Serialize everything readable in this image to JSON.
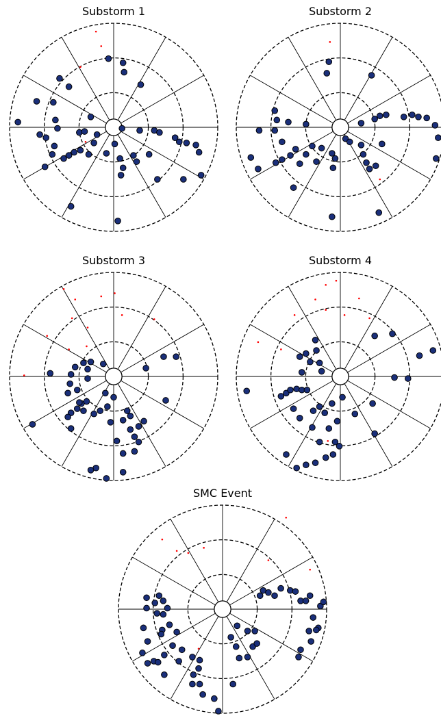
{
  "chart_data": [
    {
      "type": "polar-scatter",
      "title": "Substorm 1",
      "xlim": [
        -1,
        1
      ],
      "ylim": [
        -1,
        1
      ],
      "rticks": [
        0.08,
        0.333,
        0.667,
        1
      ],
      "thetaticks": [
        0,
        30,
        60,
        90,
        120,
        150,
        180,
        210,
        240,
        270,
        300,
        330
      ],
      "series": [
        {
          "color": "#1a2f7a",
          "x": [
            -0.05,
            0.09,
            0.1,
            0.26,
            -0.92,
            -0.74,
            -0.58,
            -0.52,
            -0.43,
            -0.56,
            -0.71,
            -0.65,
            -0.54,
            -0.57,
            -0.59,
            -0.66,
            -0.48,
            -0.43,
            -0.38,
            -0.33,
            -0.32,
            -0.28,
            -0.24,
            -0.16,
            -0.22,
            -0.19,
            -0.07,
            0.08,
            0.25,
            0.39,
            0.44,
            0.59,
            0.63,
            0.7,
            0.79,
            0.82,
            0.84,
            0.67,
            0.01,
            0.06,
            0.09,
            0.07,
            0.19,
            0.22,
            0.34,
            0.42,
            -0.41,
            0.04
          ],
          "y": [
            0.66,
            0.62,
            0.53,
            0.41,
            0.05,
            0.25,
            0.24,
            0.47,
            0.39,
            0.07,
            -0.07,
            -0.1,
            -0.01,
            -0.18,
            -0.26,
            -0.38,
            -0.3,
            -0.27,
            -0.24,
            -0.05,
            -0.22,
            -0.04,
            -0.26,
            -0.07,
            0.1,
            -0.15,
            -0.25,
            -0.01,
            -0.03,
            -0.03,
            -0.05,
            -0.1,
            -0.14,
            -0.15,
            -0.17,
            -0.24,
            -0.46,
            -0.5,
            -0.16,
            -0.3,
            -0.39,
            -0.46,
            -0.27,
            -0.33,
            -0.26,
            -0.5,
            -0.76,
            -0.9
          ]
        },
        {
          "color": "#ff0000",
          "x": [
            -0.17,
            -0.12,
            -0.32,
            -0.27
          ],
          "y": [
            0.92,
            0.78,
            0.58,
            -0.14
          ]
        }
      ]
    },
    {
      "type": "polar-scatter",
      "title": "Substorm 2",
      "xlim": [
        -1,
        1
      ],
      "ylim": [
        -1,
        1
      ],
      "rticks": [
        0.08,
        0.333,
        0.667,
        1
      ],
      "thetaticks": [
        0,
        30,
        60,
        90,
        120,
        150,
        180,
        210,
        240,
        270,
        300,
        330
      ],
      "series": [
        {
          "color": "#1a2f7a",
          "x": [
            0.3,
            -0.13,
            -0.11,
            -0.63,
            -0.61,
            -0.63,
            -0.78,
            -0.5,
            -0.33,
            -0.56,
            -0.62,
            -0.56,
            -0.48,
            -0.86,
            -0.79,
            -0.45,
            -0.43,
            -0.39,
            -0.33,
            -0.27,
            -0.23,
            -0.18,
            -0.08,
            -0.07,
            -0.05,
            0.05,
            0.09,
            0.2,
            0.33,
            0.38,
            0.44,
            0.61,
            0.69,
            0.75,
            0.83,
            0.91,
            0.94,
            0.92,
            0.22,
            0.25,
            0.28,
            0.34,
            0.2,
            0.4,
            -0.08,
            0.37
          ],
          "y": [
            0.5,
            0.52,
            0.63,
            0.16,
            0.07,
            -0.03,
            -0.03,
            0.05,
            0.03,
            -0.14,
            -0.34,
            -0.31,
            -0.27,
            -0.29,
            -0.4,
            -0.58,
            -0.21,
            -0.35,
            -0.26,
            -0.18,
            -0.33,
            -0.2,
            -0.25,
            -0.39,
            -0.3,
            -0.11,
            -0.14,
            0.04,
            0.08,
            0.11,
            0.12,
            0.1,
            0.12,
            0.1,
            0.09,
            0.02,
            -0.1,
            -0.3,
            -0.26,
            -0.34,
            -0.4,
            -0.37,
            -0.17,
            -0.16,
            -0.86,
            -0.82
          ]
        },
        {
          "color": "#ff0000",
          "x": [
            -0.1,
            0.38
          ],
          "y": [
            0.82,
            -0.5
          ]
        }
      ]
    },
    {
      "type": "polar-scatter",
      "title": "Substorm 3",
      "xlim": [
        -1,
        1
      ],
      "ylim": [
        -1,
        1
      ],
      "rticks": [
        0.08,
        0.333,
        0.667,
        1
      ],
      "thetaticks": [
        0,
        30,
        60,
        90,
        120,
        150,
        180,
        210,
        240,
        270,
        300,
        330
      ],
      "series": [
        {
          "color": "#1a2f7a",
          "x": [
            -0.1,
            -0.22,
            -0.25,
            -0.29,
            -0.37,
            -0.41,
            -0.42,
            -0.25,
            -0.61,
            -0.44,
            -0.35,
            -0.31,
            -0.35,
            -0.41,
            -0.44,
            -0.41,
            -0.33,
            -0.26,
            -0.29,
            -0.19,
            -0.13,
            -0.06,
            -0.08,
            0.0,
            -0.03,
            0.13,
            0.16,
            0.09,
            0.24,
            0.29,
            0.16,
            0.2,
            0.24,
            0.2,
            0.09,
            0.03,
            0.09,
            -0.17,
            -0.22,
            -0.07,
            0.5,
            0.6,
            0.48,
            -0.78,
            0.31
          ],
          "y": [
            0.12,
            0.14,
            0.07,
            0.13,
            0.09,
            0.02,
            -0.07,
            -0.02,
            0.03,
            -0.16,
            -0.13,
            -0.26,
            -0.31,
            -0.35,
            -0.39,
            -0.5,
            -0.25,
            -0.24,
            -0.33,
            -0.36,
            -0.33,
            -0.29,
            -0.16,
            -0.2,
            -0.44,
            -0.33,
            -0.38,
            -0.42,
            -0.48,
            -0.43,
            -0.51,
            -0.58,
            -0.63,
            -0.72,
            -0.74,
            -0.62,
            -0.92,
            -0.88,
            -0.9,
            -0.98,
            -0.23,
            0.19,
            0.19,
            -0.46,
            0.08
          ]
        },
        {
          "color": "#ff0000",
          "x": [
            -0.48,
            -0.37,
            -0.12,
            -0.4,
            -0.25,
            0.08,
            -0.64,
            -0.86,
            -0.26,
            -0.43,
            0.39,
            0.01
          ],
          "y": [
            0.84,
            0.74,
            0.77,
            0.56,
            0.47,
            0.59,
            0.39,
            0.01,
            0.29,
            0.26,
            0.55,
            0.8
          ]
        }
      ]
    },
    {
      "type": "polar-scatter",
      "title": "Substorm 4",
      "xlim": [
        -1,
        1
      ],
      "ylim": [
        -1,
        1
      ],
      "rticks": [
        0.08,
        0.333,
        0.667,
        1
      ],
      "thetaticks": [
        0,
        30,
        60,
        90,
        120,
        150,
        180,
        210,
        240,
        270,
        300,
        330
      ],
      "series": [
        {
          "color": "#1a2f7a",
          "x": [
            -0.24,
            -0.23,
            -0.33,
            -0.29,
            -0.39,
            -0.37,
            -0.2,
            -0.18,
            0.33,
            0.5,
            0.76,
            0.89,
            0.52,
            0.65,
            -0.9,
            -0.57,
            -0.52,
            -0.48,
            -0.42,
            -0.37,
            -0.32,
            -0.45,
            -0.39,
            -0.26,
            -0.2,
            -0.15,
            -0.08,
            -0.03,
            -0.27,
            -0.11,
            -0.2,
            -0.05,
            -0.01,
            -0.07,
            -0.14,
            -0.24,
            -0.33,
            -0.42,
            -0.52,
            0.14,
            0.31,
            0.33,
            0.02
          ],
          "y": [
            0.35,
            0.25,
            0.22,
            0.14,
            0.19,
            0.04,
            0.13,
            0.05,
            0.39,
            0.41,
            0.2,
            0.25,
            -0.01,
            -0.02,
            -0.14,
            -0.19,
            -0.16,
            -0.13,
            -0.12,
            -0.13,
            -0.13,
            -0.31,
            -0.4,
            -0.33,
            -0.29,
            -0.35,
            -0.26,
            -0.43,
            -0.49,
            -0.5,
            -0.63,
            -0.63,
            -0.67,
            -0.75,
            -0.78,
            -0.83,
            -0.85,
            -0.88,
            -0.75,
            -0.36,
            -0.26,
            -0.55,
            -0.2
          ]
        },
        {
          "color": "#ff0000",
          "x": [
            -0.14,
            -0.04,
            0.18,
            -0.24,
            -0.14,
            -0.44,
            0.04,
            0.28,
            -0.79,
            -0.57,
            -0.12
          ],
          "y": [
            0.88,
            0.92,
            0.75,
            0.74,
            0.64,
            0.59,
            0.59,
            0.56,
            0.33,
            0.26,
            -0.62
          ]
        }
      ]
    },
    {
      "type": "polar-scatter",
      "title": "SMC Event",
      "xlim": [
        -1,
        1
      ],
      "ylim": [
        -1,
        1
      ],
      "rticks": [
        0.08,
        0.333,
        0.667,
        1
      ],
      "thetaticks": [
        0,
        30,
        60,
        90,
        120,
        150,
        180,
        210,
        240,
        270,
        300,
        330
      ],
      "series": [
        {
          "color": "#1a2f7a",
          "x": [
            -0.73,
            -0.73,
            -0.65,
            -0.61,
            -0.57,
            -0.63,
            -0.57,
            -0.53,
            -0.58,
            -0.51,
            -0.44,
            -0.59,
            -0.76,
            -0.72,
            -0.77,
            -0.72,
            -0.66,
            -0.62,
            -0.56,
            -0.48,
            -0.39,
            -0.42,
            -0.56,
            -0.29,
            -0.22,
            -0.23,
            -0.28,
            -0.29,
            -0.22,
            -0.19,
            -0.08,
            -0.04,
            0.1,
            0.08,
            0.13,
            0.16,
            0.29,
            0.33,
            0.14,
            0.36,
            0.39,
            0.44,
            0.5,
            0.56,
            0.65,
            0.7,
            0.75,
            0.8,
            0.84,
            0.94,
            0.97,
            0.87,
            0.92,
            0.9,
            0.83,
            0.85,
            0.75,
            0.73,
            0.24,
            0.31,
            0.24
          ],
          "y": [
            0.11,
            0.01,
            0.06,
            0.13,
            0.08,
            -0.04,
            -0.05,
            0.01,
            -0.2,
            -0.15,
            -0.22,
            -0.24,
            -0.18,
            -0.31,
            -0.42,
            -0.52,
            -0.5,
            -0.51,
            -0.44,
            -0.35,
            -0.39,
            -0.5,
            -0.63,
            -0.46,
            -0.49,
            -0.57,
            -0.63,
            -0.72,
            -0.72,
            -0.82,
            -0.86,
            -0.98,
            -0.72,
            -0.27,
            -0.36,
            -0.47,
            -0.36,
            -0.33,
            -0.16,
            0.13,
            0.18,
            0.16,
            0.13,
            0.2,
            0.18,
            0.17,
            0.08,
            0.08,
            0.13,
            0.03,
            0.07,
            -0.08,
            -0.18,
            -0.2,
            -0.21,
            -0.31,
            -0.39,
            -0.46,
            -0.21,
            -0.21,
            -0.46
          ]
        },
        {
          "color": "#ff0000",
          "x": [
            0.61,
            -0.58,
            -0.44,
            -0.33,
            -0.18,
            0.44,
            0.84,
            -0.23
          ],
          "y": [
            0.88,
            0.67,
            0.56,
            0.54,
            0.59,
            0.47,
            0.38,
            -0.38
          ]
        }
      ]
    }
  ]
}
